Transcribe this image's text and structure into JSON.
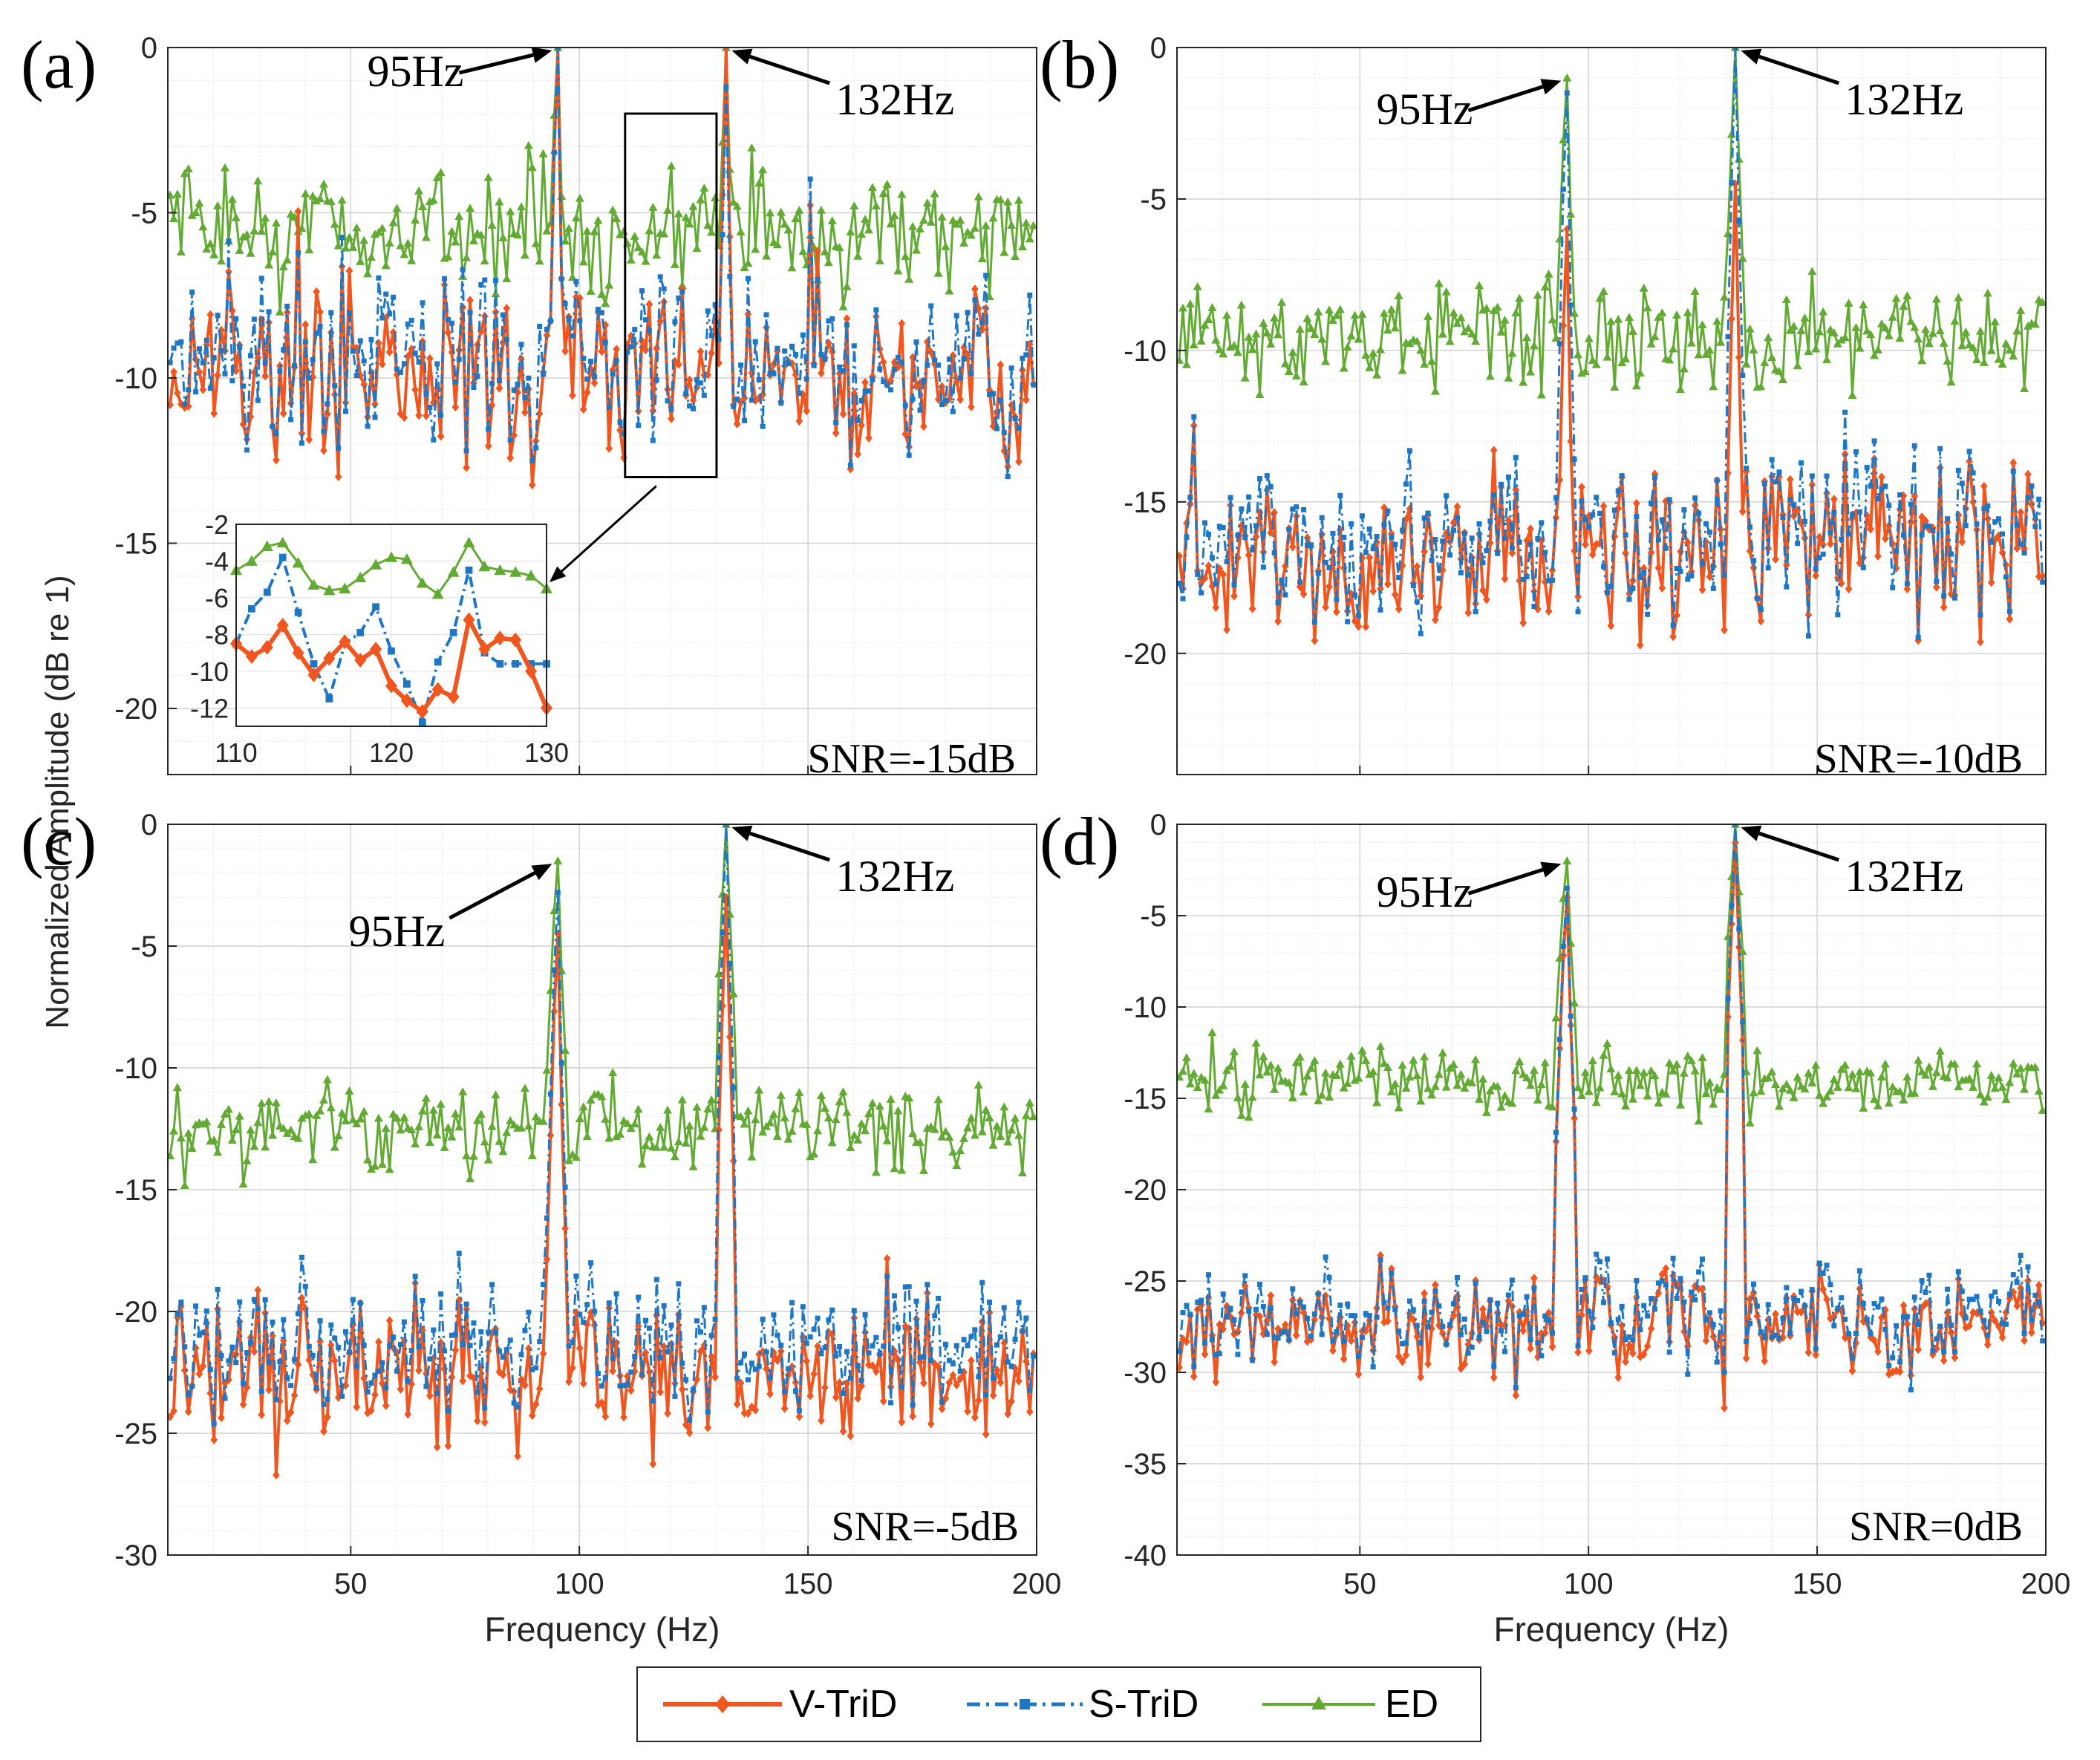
{
  "figure": {
    "shared_ylabel": "Normalized Amplitude (dB re 1)",
    "shared_xlabel": "Frequency (Hz)",
    "legend": [
      {
        "label": "V-TriD",
        "color": "#F0561F",
        "style": "solid",
        "marker": "diamond"
      },
      {
        "label": "S-TriD",
        "color": "#1F77C4",
        "style": "dashdot",
        "marker": "square"
      },
      {
        "label": "ED",
        "color": "#62AA34",
        "style": "solid",
        "marker": "triangle"
      }
    ]
  },
  "chart_data": [
    {
      "type": "line",
      "panel_label": "(a)",
      "snr_label": "SNR=-15dB",
      "xlim": [
        10,
        200
      ],
      "ylim": [
        -22,
        0
      ],
      "yticks": [
        0,
        -5,
        -10,
        -15,
        -20
      ],
      "xticks": [
        50,
        100,
        150,
        200
      ],
      "show_x_ticklabels": false,
      "grid": true,
      "baselines": {
        "ED": -5.5,
        "S-TriD": -9.5,
        "V-TriD": -9.8
      },
      "peaks": [
        {
          "f": 95,
          "ED": 0,
          "S-TriD": 0,
          "V-TriD": 0
        },
        {
          "f": 132,
          "ED": 0,
          "S-TriD": -1.2,
          "V-TriD": 0
        }
      ],
      "annotations": [
        {
          "text": "95Hz",
          "f": 95,
          "y": 0
        },
        {
          "text": "132Hz",
          "f": 132,
          "y": 0
        }
      ],
      "zoom_box": {
        "x": [
          110,
          130
        ],
        "y": [
          -13,
          -2
        ]
      },
      "inset": {
        "xlim": [
          110,
          130
        ],
        "ylim": [
          -13,
          -2
        ],
        "yticks": [
          -2,
          -4,
          -6,
          -8,
          -10,
          -12
        ],
        "xticks": [
          110,
          120,
          130
        ],
        "x": [
          110,
          111,
          112,
          113,
          114,
          115,
          116,
          117,
          118,
          119,
          120,
          121,
          122,
          123,
          124,
          125,
          126,
          127,
          128,
          129,
          130
        ],
        "series": [
          {
            "name": "ED",
            "values": [
              -4.5,
              -4.0,
              -3.2,
              -3.0,
              -4.1,
              -5.3,
              -5.6,
              -5.5,
              -4.9,
              -4.2,
              -3.8,
              -3.9,
              -5.2,
              -5.8,
              -4.6,
              -3.0,
              -4.3,
              -4.5,
              -4.6,
              -4.8,
              -5.5
            ]
          },
          {
            "name": "S-TriD",
            "values": [
              -8.5,
              -6.6,
              -5.7,
              -3.8,
              -6.8,
              -9.6,
              -11.5,
              -8.5,
              -7.9,
              -6.5,
              -8.9,
              -10.7,
              -12.8,
              -9.5,
              -7.9,
              -4.5,
              -9.0,
              -9.6,
              -9.6,
              -9.6,
              -9.6
            ]
          },
          {
            "name": "V-TriD",
            "values": [
              -8.5,
              -9.2,
              -8.7,
              -7.5,
              -9.0,
              -10.2,
              -9.3,
              -8.4,
              -9.4,
              -8.8,
              -10.8,
              -11.6,
              -12.2,
              -11.0,
              -11.4,
              -7.2,
              -8.8,
              -8.2,
              -8.3,
              -10.0,
              -12.0
            ]
          }
        ]
      }
    },
    {
      "type": "line",
      "panel_label": "(b)",
      "snr_label": "SNR=-10dB",
      "xlim": [
        10,
        200
      ],
      "ylim": [
        -24,
        0
      ],
      "yticks": [
        0,
        -5,
        -10,
        -15,
        -20
      ],
      "xticks": [
        50,
        100,
        150,
        200
      ],
      "show_x_ticklabels": false,
      "grid": true,
      "baselines": {
        "ED": -9.5,
        "S-TriD": -16.0,
        "V-TriD": -16.5
      },
      "peaks": [
        {
          "f": 95,
          "ED": -1.0,
          "S-TriD": -1.5,
          "V-TriD": -6.0
        },
        {
          "f": 132,
          "ED": 0,
          "S-TriD": 0,
          "V-TriD": -4.5
        }
      ],
      "annotations": [
        {
          "text": "95Hz",
          "f": 95,
          "y": -1.0
        },
        {
          "text": "132Hz",
          "f": 132,
          "y": 0
        }
      ]
    },
    {
      "type": "line",
      "panel_label": "(c)",
      "snr_label": "SNR=-5dB",
      "xlim": [
        10,
        200
      ],
      "ylim": [
        -30,
        0
      ],
      "yticks": [
        0,
        -5,
        -10,
        -15,
        -20,
        -25,
        -30
      ],
      "xticks": [
        50,
        100,
        150,
        200
      ],
      "show_x_ticklabels": true,
      "grid": true,
      "baselines": {
        "ED": -12.5,
        "S-TriD": -21.5,
        "V-TriD": -22.5
      },
      "peaks": [
        {
          "f": 95,
          "ED": -1.5,
          "S-TriD": -2.8,
          "V-TriD": -4.5
        },
        {
          "f": 132,
          "ED": 0,
          "S-TriD": 0,
          "V-TriD": -3.0
        }
      ],
      "annotations": [
        {
          "text": "95Hz",
          "f": 95,
          "y": -1.5
        },
        {
          "text": "132Hz",
          "f": 132,
          "y": 0
        }
      ]
    },
    {
      "type": "line",
      "panel_label": "(d)",
      "snr_label": "SNR=0dB",
      "xlim": [
        10,
        200
      ],
      "ylim": [
        -40,
        0
      ],
      "yticks": [
        0,
        -5,
        -10,
        -15,
        -20,
        -25,
        -30,
        -35,
        -40
      ],
      "xticks": [
        50,
        100,
        150,
        200
      ],
      "show_x_ticklabels": true,
      "grid": true,
      "baselines": {
        "ED": -14.0,
        "S-TriD": -27.0,
        "V-TriD": -27.5
      },
      "peaks": [
        {
          "f": 95,
          "ED": -2.0,
          "S-TriD": -3.5,
          "V-TriD": -4.0
        },
        {
          "f": 132,
          "ED": 0,
          "S-TriD": 0,
          "V-TriD": -1.0
        }
      ],
      "annotations": [
        {
          "text": "95Hz",
          "f": 95,
          "y": -2.0
        },
        {
          "text": "132Hz",
          "f": 132,
          "y": 0
        }
      ]
    }
  ]
}
